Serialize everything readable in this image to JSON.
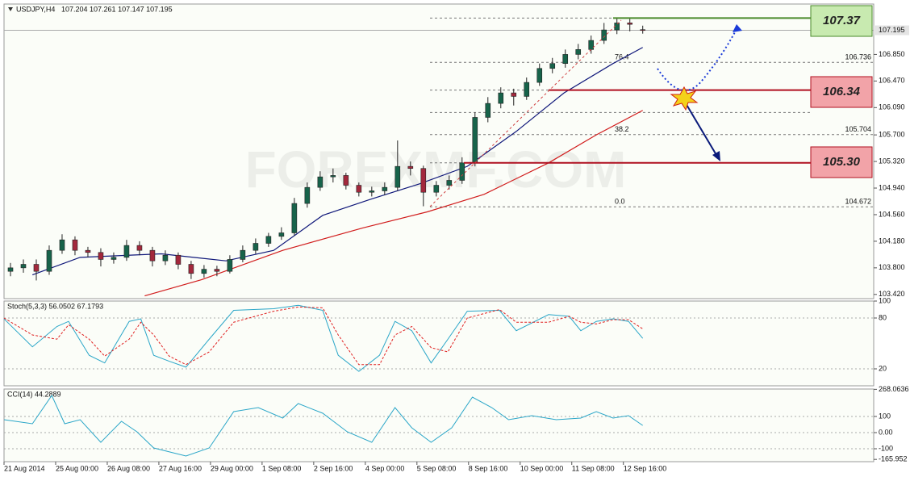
{
  "chart_data": [
    {
      "type": "candlestick",
      "title": "USDJPY,H4",
      "subtitle": "107.204 107.261 107.147 107.195",
      "watermark": "FOREXMF.COM",
      "x": [
        0,
        1,
        2,
        3,
        4,
        5,
        6,
        7,
        8,
        9,
        10,
        11,
        12,
        13,
        14,
        15,
        16,
        17,
        18,
        19,
        20,
        21,
        22,
        23,
        24,
        25,
        26,
        27,
        28,
        29,
        30,
        31,
        32,
        33,
        34,
        35,
        36,
        37,
        38,
        39,
        40,
        41,
        42,
        43,
        44,
        45,
        46,
        47,
        48,
        49
      ],
      "open": [
        103.75,
        103.8,
        103.85,
        103.75,
        104.05,
        104.2,
        104.05,
        104.02,
        103.92,
        103.95,
        104.12,
        104.05,
        103.9,
        103.98,
        103.85,
        103.72,
        103.78,
        103.75,
        103.92,
        104.05,
        104.15,
        104.25,
        104.3,
        104.72,
        104.95,
        105.1,
        105.12,
        104.98,
        104.88,
        104.9,
        104.95,
        105.25,
        105.22,
        104.88,
        104.98,
        105.05,
        105.3,
        105.95,
        106.15,
        106.3,
        106.25,
        106.45,
        106.65,
        106.72,
        106.85,
        106.92,
        107.05,
        107.2,
        107.3,
        107.204
      ],
      "high": [
        103.87,
        103.92,
        103.92,
        104.12,
        104.28,
        104.25,
        104.1,
        104.08,
        104.02,
        104.2,
        104.18,
        104.1,
        104.05,
        104.02,
        103.9,
        103.84,
        103.83,
        103.98,
        104.12,
        104.22,
        104.3,
        104.38,
        104.8,
        105.02,
        105.18,
        105.22,
        105.16,
        105.02,
        104.96,
        105.02,
        105.62,
        105.32,
        105.26,
        105.04,
        105.12,
        105.38,
        106.02,
        106.24,
        106.38,
        106.36,
        106.52,
        106.72,
        106.8,
        106.92,
        107.0,
        107.12,
        107.3,
        107.37,
        107.36,
        107.261
      ],
      "low": [
        103.68,
        103.73,
        103.62,
        103.7,
        104.0,
        103.98,
        103.95,
        103.82,
        103.86,
        103.9,
        103.98,
        103.82,
        103.84,
        103.78,
        103.64,
        103.66,
        103.68,
        103.72,
        103.88,
        104.0,
        104.1,
        104.2,
        104.26,
        104.66,
        104.9,
        105.02,
        104.92,
        104.82,
        104.82,
        104.84,
        104.9,
        105.12,
        104.68,
        104.82,
        104.92,
        105.0,
        105.25,
        105.88,
        106.08,
        106.12,
        106.2,
        106.4,
        106.58,
        106.66,
        106.78,
        106.86,
        107.0,
        107.14,
        107.18,
        107.147
      ],
      "close": [
        103.8,
        103.85,
        103.75,
        104.05,
        104.2,
        104.05,
        104.02,
        103.92,
        103.95,
        104.12,
        104.05,
        103.9,
        103.98,
        103.85,
        103.72,
        103.78,
        103.75,
        103.92,
        104.05,
        104.15,
        104.25,
        104.3,
        104.72,
        104.95,
        105.1,
        105.12,
        104.98,
        104.88,
        104.9,
        104.95,
        105.25,
        105.22,
        104.88,
        104.98,
        105.05,
        105.3,
        105.95,
        106.15,
        106.3,
        106.25,
        106.45,
        106.65,
        106.72,
        106.85,
        106.92,
        107.05,
        107.2,
        107.3,
        107.28,
        107.195
      ],
      "up_color": "#17634a",
      "down_color": "#a3283c",
      "lines": [
        {
          "color": "#10187a",
          "x": [
            1.7,
            5.4,
            11.7,
            16.7,
            20.4,
            24.2,
            27.9,
            31.7,
            35.4,
            39.2,
            42.9,
            46.7,
            49
          ],
          "values": [
            103.7,
            103.95,
            104.0,
            103.9,
            104.05,
            104.55,
            104.78,
            105.0,
            105.25,
            105.75,
            106.3,
            106.72,
            106.95
          ]
        },
        {
          "color": "#d11c1c",
          "x": [
            10.4,
            14.8,
            21.1,
            27.3,
            32.3,
            36.7,
            41.7,
            45.4,
            49
          ],
          "values": [
            103.4,
            103.63,
            104.05,
            104.37,
            104.6,
            104.85,
            105.3,
            105.7,
            106.05
          ]
        }
      ],
      "xlim": [
        -0.5,
        66.9
      ],
      "xticks": [
        {
          "value": -0.5,
          "label": "21 Aug 2014"
        },
        {
          "value": 3.5,
          "label": "25 Aug 00:00"
        },
        {
          "value": 7.5,
          "label": "26 Aug 08:00"
        },
        {
          "value": 11.5,
          "label": "27 Aug 16:00"
        },
        {
          "value": 15.5,
          "label": "29 Aug 00:00"
        },
        {
          "value": 19.5,
          "label": "1 Sep 08:00"
        },
        {
          "value": 23.5,
          "label": "2 Sep 16:00"
        },
        {
          "value": 27.5,
          "label": "4 Sep 00:00"
        },
        {
          "value": 31.5,
          "label": "5 Sep 08:00"
        },
        {
          "value": 35.5,
          "label": "8 Sep 16:00"
        },
        {
          "value": 39.5,
          "label": "10 Sep 00:00"
        },
        {
          "value": 43.5,
          "label": "11 Sep 08:00"
        },
        {
          "value": 47.5,
          "label": "12 Sep 16:00"
        }
      ],
      "ylim": [
        103.36,
        107.57
      ],
      "yticks": [
        {
          "value": 106.85,
          "label": "106.850"
        },
        {
          "value": 106.47,
          "label": "106.470"
        },
        {
          "value": 106.09,
          "label": "106.090"
        },
        {
          "value": 105.7,
          "label": "105.700"
        },
        {
          "value": 105.32,
          "label": "105.320"
        },
        {
          "value": 104.94,
          "label": "104.940"
        },
        {
          "value": 104.56,
          "label": "104.560"
        },
        {
          "value": 104.18,
          "label": "104.180"
        },
        {
          "value": 103.8,
          "label": "103.800"
        },
        {
          "value": 103.42,
          "label": "103.420"
        }
      ],
      "last_price": 107.195,
      "fib_levels": [
        {
          "level": "76.4",
          "price": 106.736
        },
        {
          "level": "38.2",
          "price": 105.704
        },
        {
          "level": "0.0",
          "price": 104.672
        }
      ],
      "fib_other_prices": [
        107.37,
        106.34,
        106.02,
        105.3
      ],
      "levels": [
        {
          "value": 107.37,
          "label": "107.37",
          "color": "#c8eab0",
          "line_color": "#4a8a2a"
        },
        {
          "value": 106.34,
          "label": "106.34",
          "color": "#f2a3a8",
          "line_color": "#b01020"
        },
        {
          "value": 105.3,
          "label": "105.30",
          "color": "#f2a3a8",
          "line_color": "#b01020"
        }
      ]
    },
    {
      "type": "line",
      "title": "Stoch(5,3,3) 56.0502 67.1793",
      "x": [
        -0.5,
        1.7,
        3.6,
        4.5,
        6.1,
        7.3,
        9.2,
        10.1,
        11.1,
        12.3,
        13.6,
        15.4,
        17.3,
        20.4,
        22.3,
        24.2,
        25.4,
        27,
        28.6,
        29.8,
        31.1,
        32.6,
        33.9,
        35.4,
        37.9,
        39.2,
        41.7,
        43.3,
        44.2,
        45.4,
        46.7,
        47.9,
        49
      ],
      "series": [
        {
          "color": "#2aa6c8",
          "dashed": false,
          "values": [
            79,
            46,
            70,
            76,
            36,
            27,
            76,
            79,
            36,
            29,
            22,
            55,
            89,
            91,
            95,
            89,
            36,
            17,
            36,
            76,
            65,
            27,
            55,
            88,
            89,
            65,
            84,
            82,
            65,
            76,
            79,
            76,
            56.0502
          ]
        },
        {
          "color": "#e02020",
          "dashed": true,
          "values": [
            80,
            60,
            55,
            72,
            55,
            35,
            55,
            75,
            60,
            35,
            25,
            40,
            75,
            88,
            93,
            92,
            60,
            25,
            25,
            60,
            70,
            45,
            40,
            80,
            90,
            75,
            75,
            82,
            75,
            73,
            78,
            78,
            67.1793
          ]
        }
      ],
      "ylim": [
        0,
        100
      ],
      "yticks": [
        100,
        80,
        20
      ],
      "levels": [
        80,
        20
      ]
    },
    {
      "type": "line",
      "title": "CCI(14) 44.2889",
      "x": [
        -0.5,
        1.7,
        3.2,
        4.2,
        5.4,
        7,
        8.6,
        9.8,
        11.1,
        13.6,
        15.4,
        17.3,
        19.2,
        21.1,
        22.3,
        24.2,
        26.1,
        28,
        29.8,
        31.1,
        32.6,
        34.2,
        35.8,
        37.3,
        38.6,
        40.4,
        42.3,
        44.2,
        45.4,
        46.7,
        47.9,
        49
      ],
      "series": [
        {
          "color": "#2aa6c8",
          "dashed": false,
          "values": [
            80,
            55,
            230,
            55,
            80,
            -60,
            70,
            5,
            -95,
            -145,
            -95,
            130,
            155,
            90,
            180,
            120,
            5,
            -60,
            155,
            30,
            -60,
            30,
            220,
            155,
            80,
            105,
            80,
            90,
            130,
            90,
            105,
            44.2889
          ]
        }
      ],
      "ylim": [
        -180,
        270
      ],
      "yticks": [
        268.0636,
        100,
        {
          "value": 0,
          "label": "0.00"
        },
        -100,
        -165.952
      ],
      "levels": [
        100,
        0,
        -100
      ]
    }
  ]
}
